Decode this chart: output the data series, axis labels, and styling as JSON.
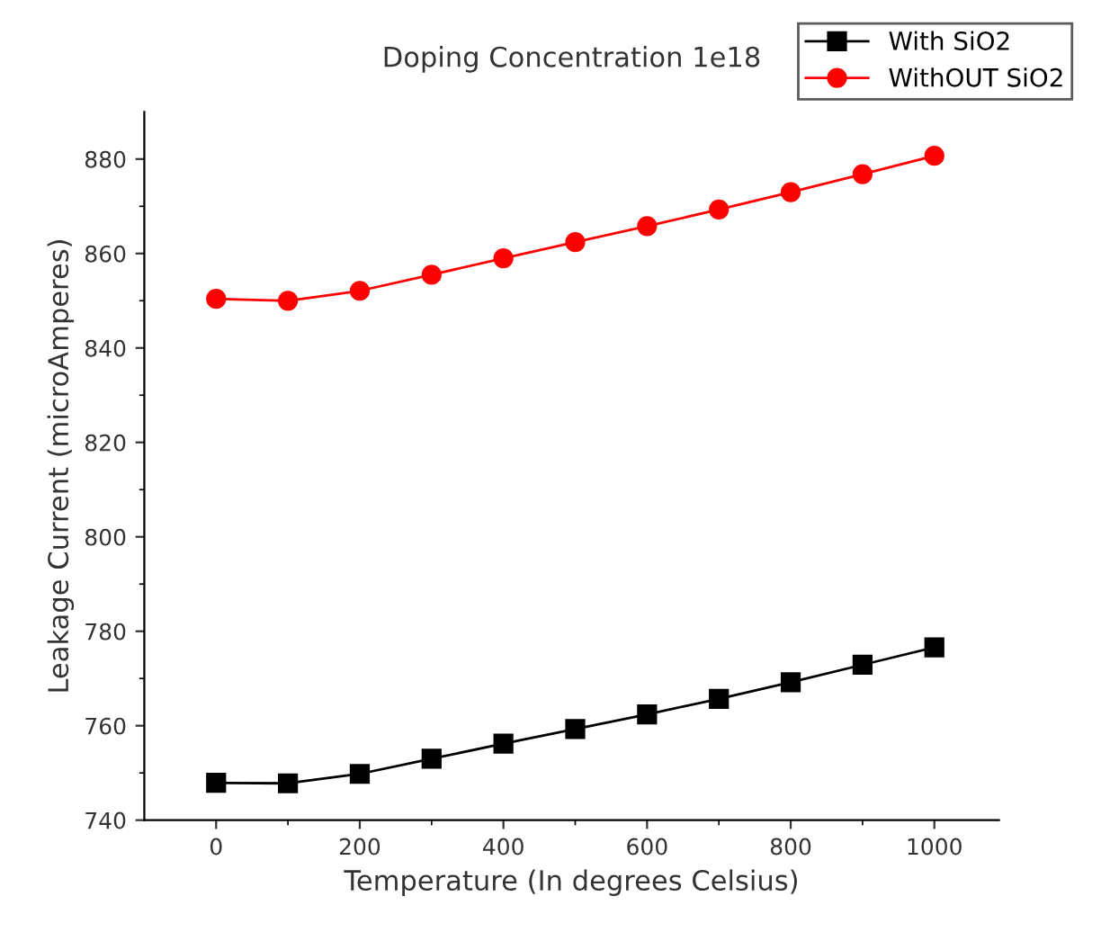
{
  "chart_data": {
    "type": "line",
    "title": "Doping Concentration 1e18",
    "xlabel": "Temperature (In degrees Celsius)",
    "ylabel": "Leakage Current (microAmperes)",
    "x": [
      0,
      100,
      200,
      300,
      400,
      500,
      600,
      700,
      800,
      900,
      1000
    ],
    "series": [
      {
        "name": "With SiO2",
        "color": "#000000",
        "marker": "square",
        "values": [
          747.9,
          747.8,
          749.8,
          753.0,
          756.2,
          759.3,
          762.4,
          765.7,
          769.2,
          772.9,
          776.6
        ]
      },
      {
        "name": "WithOUT SiO2",
        "color": "#ff0000",
        "marker": "circle",
        "values": [
          850.4,
          850.0,
          852.1,
          855.5,
          859.0,
          862.4,
          865.8,
          869.3,
          873.0,
          876.8,
          880.7
        ]
      }
    ],
    "xlim": [
      -100,
      1090
    ],
    "ylim": [
      740,
      890
    ],
    "xticks": [
      0,
      200,
      400,
      600,
      800,
      1000
    ],
    "yticks": [
      740,
      760,
      780,
      800,
      820,
      840,
      860,
      880
    ],
    "grid": false,
    "legend": "top right",
    "line_style": "solid"
  }
}
